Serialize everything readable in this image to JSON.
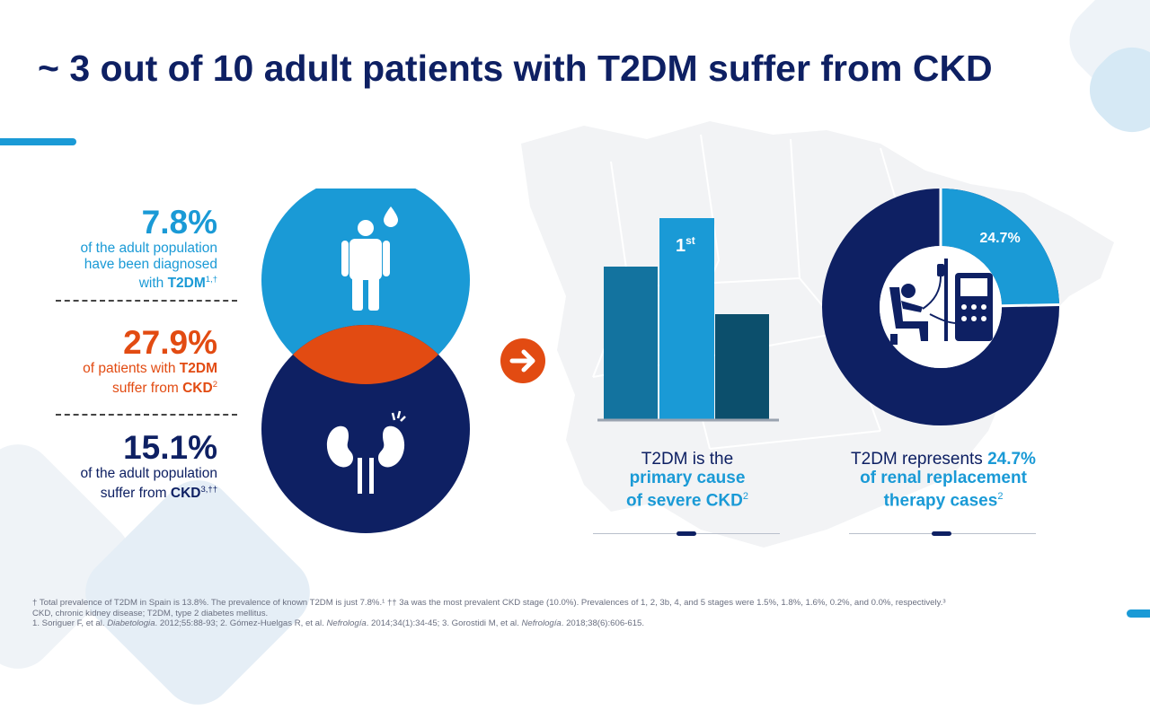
{
  "title": "~ 3 out of 10 adult patients with T2DM suffer from CKD",
  "stats": [
    {
      "value": "7.8%",
      "line1": "of the adult population",
      "line2": "have been diagnosed",
      "line3_pre": "with ",
      "line3_bold": "T2DM",
      "sup": "1,†",
      "color": "#1a9ad6"
    },
    {
      "value": "27.9%",
      "line1_pre": "of patients with ",
      "line1_bold": "T2DM",
      "line2_pre": "suffer from ",
      "line2_bold": "CKD",
      "sup": "2",
      "color": "#e24b12"
    },
    {
      "value": "15.1%",
      "line1": "of the adult population",
      "line2_pre": "suffer from ",
      "line2_bold": "CKD",
      "sup": "3,††",
      "color": "#0e2063"
    }
  ],
  "icons": {
    "person": "person-drop-icon",
    "kidney": "kidneys-icon",
    "arrow": "arrow-right-icon",
    "dialysis": "dialysis-patient-icon"
  },
  "bar_chart": {
    "top_label": "1",
    "top_label_sup": "st",
    "colors": [
      "#13739f",
      "#1a9ad6",
      "#0c4f6c"
    ]
  },
  "donut": {
    "percent": 24.7,
    "label": "24.7%",
    "color_highlight": "#1a9ad6",
    "color_rest": "#0e2063"
  },
  "captions": {
    "bar": {
      "line1": "T2DM is the",
      "line2": "primary cause",
      "line3": "of severe CKD",
      "sup": "2"
    },
    "donut": {
      "line1_pre": "T2DM represents ",
      "line1_bold": "24.7%",
      "line2": "of renal replacement",
      "line3": "therapy cases",
      "sup": "2"
    }
  },
  "footnotes": {
    "line1": "† Total prevalence of T2DM in Spain is 13.8%. The prevalence of known T2DM is just 7.8%.¹ †† 3a was the most prevalent CKD stage (10.0%). Prevalences of 1, 2, 3b, 4, and 5 stages were 1.5%, 1.8%, 1.6%, 0.2%, and 0.0%, respectively.³",
    "line2": "CKD, chronic kidney disease; T2DM, type 2 diabetes mellitus.",
    "ref_prefix": "1. Soriguer F, et al. ",
    "ref1_journal": "Diabetologia",
    "ref1_rest": ". 2012;55:88-93; 2. Gómez-Huelgas R, et al. ",
    "ref2_journal": "Nefrología",
    "ref2_rest": ". 2014;34(1):34-45; 3. Gorostidi M, et al. ",
    "ref3_journal": "Nefrología",
    "ref3_rest": ". 2018;38(6):606-615."
  }
}
